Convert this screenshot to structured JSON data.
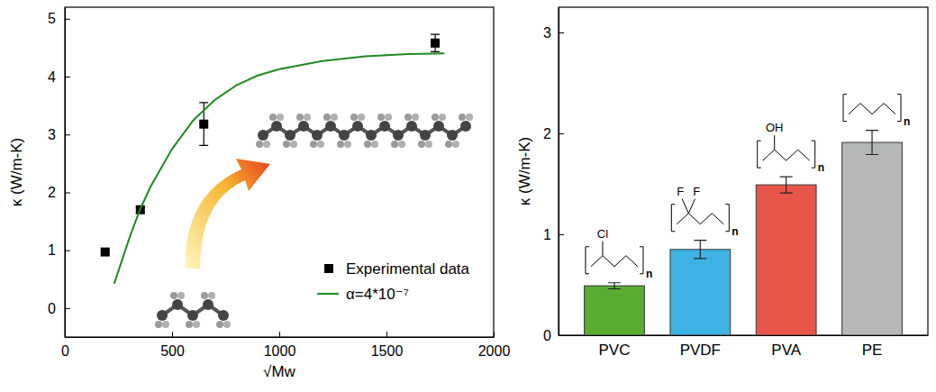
{
  "chart_data": [
    {
      "type": "scatter",
      "x_label": "√Mw",
      "y_label": "κ (W/m-K)",
      "xlim": [
        0,
        2000
      ],
      "xticks": [
        0,
        500,
        1000,
        1500,
        2000
      ],
      "ylim": [
        -0.5,
        5.2
      ],
      "yticks": [
        0,
        1,
        2,
        3,
        4,
        5
      ],
      "legend": "lower right",
      "series": [
        {
          "name": "Experimental data",
          "type": "scatter",
          "marker": "square",
          "color": "#000000",
          "x": [
            188,
            352,
            648,
            1727
          ],
          "values": [
            0.97,
            1.7,
            3.18,
            4.58
          ],
          "errors": [
            0.03,
            0.05,
            0.37,
            0.15
          ]
        },
        {
          "name": "α=4*10⁻⁷",
          "type": "line",
          "line_style": "solid",
          "color": "#1f8a1f",
          "x": [
            230,
            300,
            350,
            400,
            500,
            600,
            700,
            800,
            900,
            1000,
            1200,
            1400,
            1600,
            1770
          ],
          "values": [
            0.42,
            1.2,
            1.7,
            2.1,
            2.75,
            3.25,
            3.6,
            3.85,
            4.02,
            4.13,
            4.27,
            4.35,
            4.39,
            4.4
          ]
        }
      ]
    },
    {
      "type": "bar",
      "y_label": "κ (W/m-K)",
      "categories": [
        "PVC",
        "PVDF",
        "PVA",
        "PE"
      ],
      "values": [
        0.49,
        0.85,
        1.49,
        1.91
      ],
      "errors": [
        0.03,
        0.09,
        0.08,
        0.12
      ],
      "colors": [
        "#5aab32",
        "#3fb2e5",
        "#e8564a",
        "#b5b8b7"
      ],
      "ylim": [
        0,
        3.25
      ],
      "yticks": [
        0,
        1,
        2,
        3
      ],
      "structure_labels": [
        [
          "Cl"
        ],
        [
          "F",
          "F"
        ],
        [
          "OH"
        ],
        []
      ],
      "repeat_label": "n"
    }
  ]
}
